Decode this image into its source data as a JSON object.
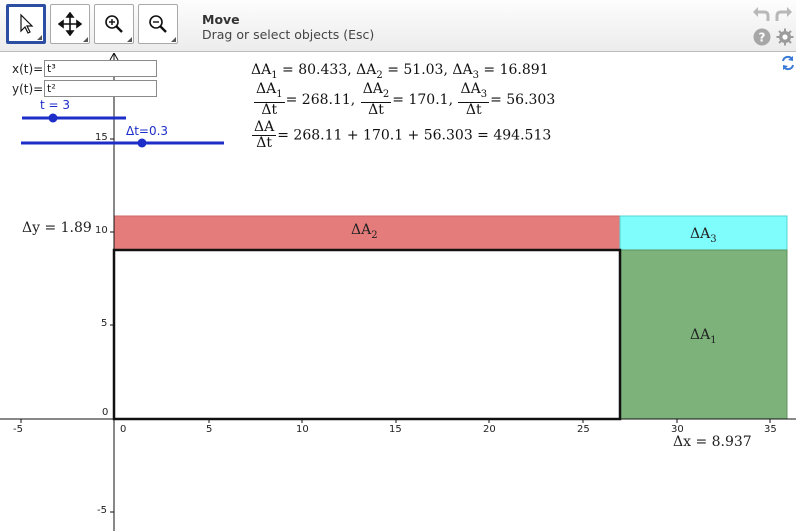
{
  "toolbar": {
    "tools": [
      {
        "name": "move-tool",
        "icon": "cursor-arrow-icon",
        "active": true
      },
      {
        "name": "move-graphics-view-tool",
        "icon": "four-way-arrows-icon",
        "active": false
      },
      {
        "name": "zoom-in-tool",
        "icon": "zoom-in-icon",
        "active": false
      },
      {
        "name": "zoom-out-tool",
        "icon": "zoom-out-icon",
        "active": false
      }
    ],
    "tool_name": "Move",
    "tool_help": "Drag or select objects (Esc)",
    "right_icons": [
      "undo-icon",
      "redo-icon",
      "help-icon",
      "settings-icon",
      "refresh-view-icon"
    ]
  },
  "inputs": {
    "x_label": "x(t)=",
    "x_value": "t³",
    "y_label": "y(t)=",
    "y_value": "t²"
  },
  "sliders": {
    "t_label": "t = 3",
    "dt_label": "Δt=0.3"
  },
  "formulas": {
    "line1": [
      {
        "sym": "ΔA",
        "sub": "1",
        "val": " = 80.433"
      },
      {
        "sym": "ΔA",
        "sub": "2",
        "val": " = 51.03"
      },
      {
        "sym": "ΔA",
        "sub": "3",
        "val": " = 16.891"
      }
    ],
    "line2": [
      {
        "sym": "ΔA",
        "sub": "1",
        "val": "= 268.11"
      },
      {
        "sym": "ΔA",
        "sub": "2",
        "val": "= 170.1"
      },
      {
        "sym": "ΔA",
        "sub": "3",
        "val": "= 56.303"
      }
    ],
    "line3_num": "ΔA",
    "line3_rhs": "= 268.11 + 170.1 + 56.303 = 494.513",
    "den": "Δt",
    "sep": ","
  },
  "labels": {
    "delta_y": "Δy = 1.89",
    "delta_x": "Δx = 8.937",
    "region_a1": "ΔA",
    "region_a1_sub": "1",
    "region_a2": "ΔA",
    "region_a2_sub": "2",
    "region_a3": "ΔA",
    "region_a3_sub": "3"
  },
  "axes": {
    "x_ticks": [
      "-5",
      "0",
      "5",
      "10",
      "15",
      "20",
      "25",
      "30",
      "35"
    ],
    "y_ticks": [
      "15",
      "10",
      "5",
      "0",
      "-5"
    ]
  },
  "colors": {
    "a1_fill": "#7db27b",
    "a2_fill": "#e57c7c",
    "a3_fill": "#7ffcfc",
    "slider": "#1d2ec8",
    "active_tool": "#2b4ea3"
  }
}
